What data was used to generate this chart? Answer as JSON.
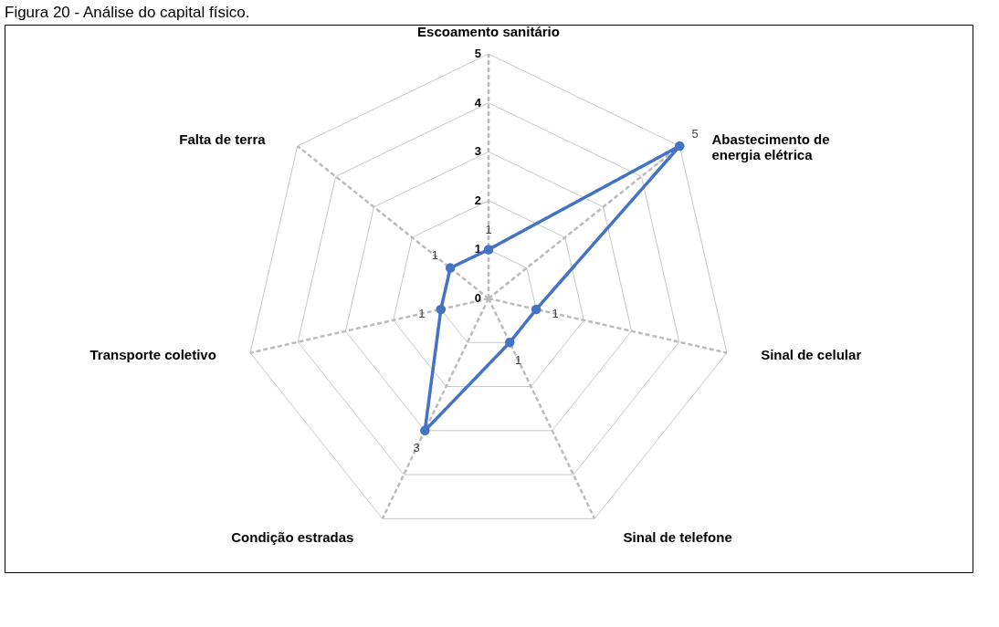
{
  "chart_data": {
    "type": "radar",
    "title": "Figura 20 - Análise do capital físico.",
    "categories": [
      "Escoamento sanitário",
      "Abastecimento de\nenergia elétrica",
      "Sinal de celular",
      "Sinal de telefone",
      "Condição estradas",
      "Transporte coletivo",
      "Falta de terra"
    ],
    "series": [
      {
        "color": "#4472c4",
        "values": [
          1,
          5,
          1,
          1,
          3,
          1,
          1
        ]
      }
    ],
    "ylim": [
      0,
      5
    ],
    "yticks": [
      0,
      1,
      2,
      3,
      4,
      5
    ],
    "grid": true,
    "data_labels": true,
    "marker": "circle",
    "legend": false,
    "line_style": "solid"
  }
}
